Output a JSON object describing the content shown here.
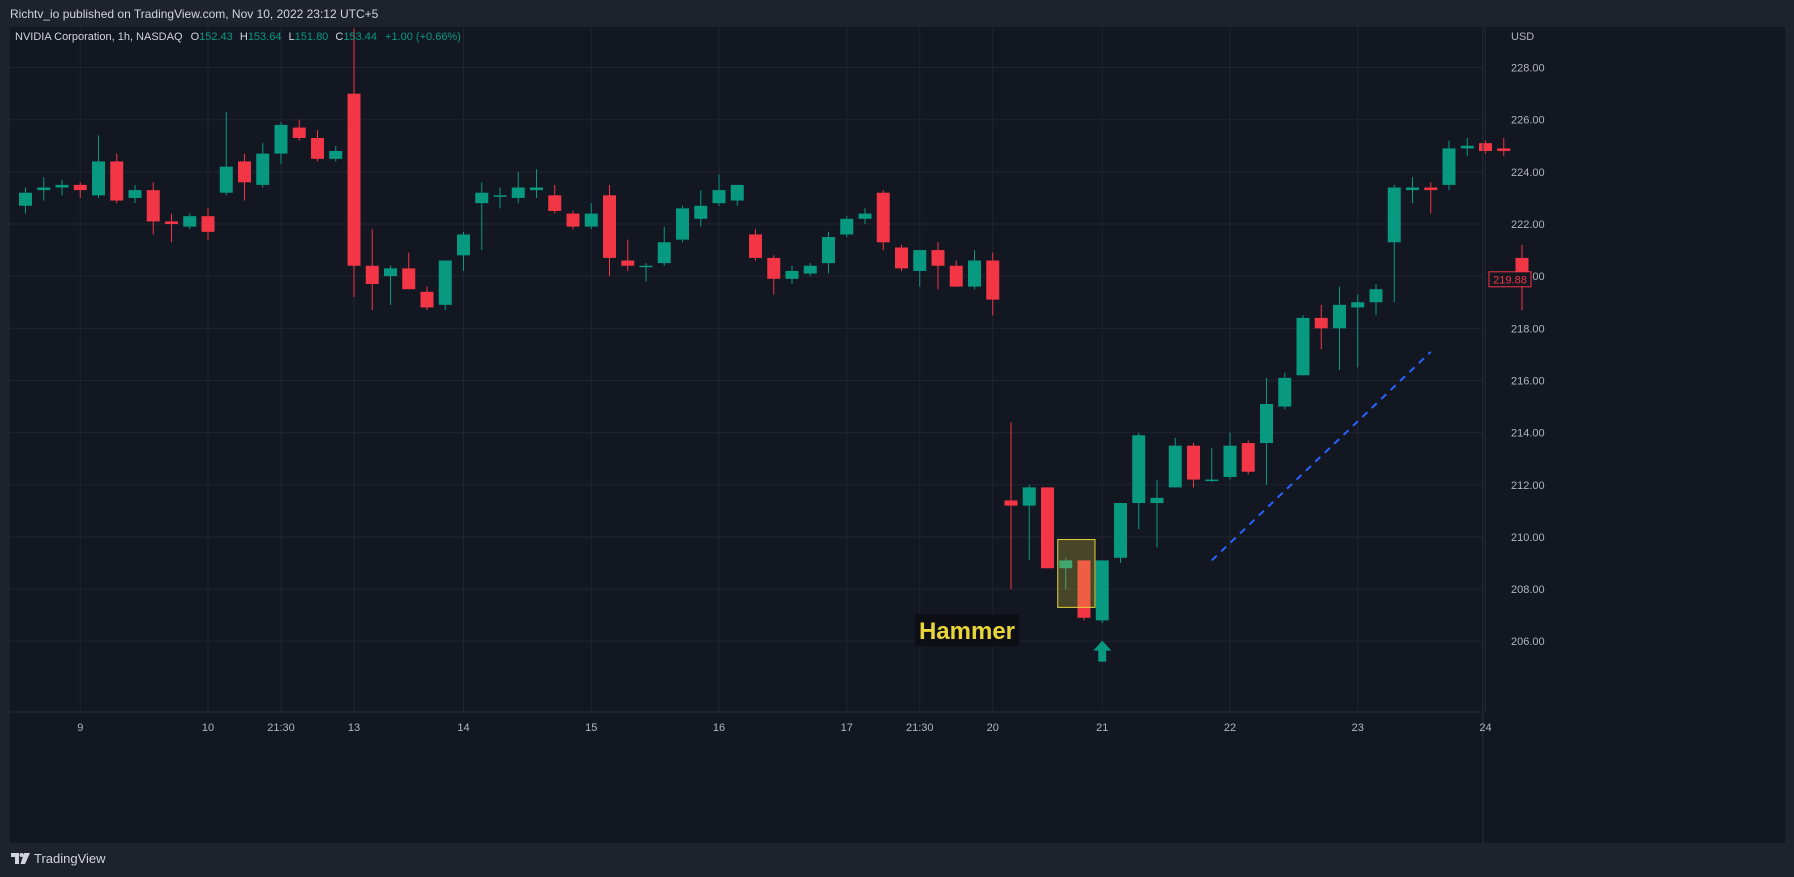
{
  "header": {
    "published": "Richtv_io published on TradingView.com, Nov 10, 2022 23:12 UTC+5"
  },
  "footer": {
    "brand": "TradingView"
  },
  "colors": {
    "up": "#089981",
    "down": "#f23645",
    "background": "#131722",
    "grid": "#1f2430",
    "text": "#b2b5be",
    "annotation": "#e8d53a",
    "trendline": "#2962ff"
  },
  "chart_data": {
    "type": "candlestick",
    "symbol": "NVIDIA Corporation",
    "interval": "1h",
    "exchange": "NASDAQ",
    "currency": "USD",
    "legend": {
      "symbol_text": "NVIDIA Corporation, 1h, NASDAQ",
      "o_label": "O",
      "o_value": "152.43",
      "h_label": "H",
      "h_value": "153.64",
      "l_label": "L",
      "l_value": "151.80",
      "c_label": "C",
      "c_value": "153.44",
      "change": "+1.00 (+0.66%)"
    },
    "last_price": "219.88",
    "ylim": [
      204,
      230
    ],
    "y_ticks": [
      "206.00",
      "208.00",
      "210.00",
      "212.00",
      "214.00",
      "216.00",
      "218.00",
      "220.00",
      "222.00",
      "224.00",
      "226.00",
      "228.00"
    ],
    "x_ticks": [
      {
        "index": 3,
        "label": "9"
      },
      {
        "index": 10,
        "label": "10"
      },
      {
        "index": 14,
        "label": "21:30"
      },
      {
        "index": 18,
        "label": "13"
      },
      {
        "index": 24,
        "label": "14"
      },
      {
        "index": 31,
        "label": "15"
      },
      {
        "index": 38,
        "label": "16"
      },
      {
        "index": 45,
        "label": "17"
      },
      {
        "index": 49,
        "label": "21:30"
      },
      {
        "index": 53,
        "label": "20"
      },
      {
        "index": 59,
        "label": "21"
      },
      {
        "index": 66,
        "label": "22"
      },
      {
        "index": 73,
        "label": "23"
      },
      {
        "index": 80,
        "label": "24"
      }
    ],
    "candles": [
      {
        "o": 222.7,
        "h": 223.4,
        "l": 222.4,
        "c": 223.2
      },
      {
        "o": 223.3,
        "h": 223.8,
        "l": 222.9,
        "c": 223.4
      },
      {
        "o": 223.4,
        "h": 223.7,
        "l": 223.1,
        "c": 223.5
      },
      {
        "o": 223.5,
        "h": 223.6,
        "l": 223.0,
        "c": 223.3
      },
      {
        "o": 223.1,
        "h": 225.4,
        "l": 223.0,
        "c": 224.4
      },
      {
        "o": 224.4,
        "h": 224.7,
        "l": 222.8,
        "c": 222.9
      },
      {
        "o": 223.0,
        "h": 223.5,
        "l": 222.8,
        "c": 223.3
      },
      {
        "o": 223.3,
        "h": 223.6,
        "l": 221.6,
        "c": 222.1
      },
      {
        "o": 222.1,
        "h": 222.4,
        "l": 221.3,
        "c": 222.0
      },
      {
        "o": 221.9,
        "h": 222.4,
        "l": 221.8,
        "c": 222.3
      },
      {
        "o": 222.3,
        "h": 222.6,
        "l": 221.4,
        "c": 221.7
      },
      {
        "o": 223.2,
        "h": 226.3,
        "l": 223.1,
        "c": 224.2
      },
      {
        "o": 224.4,
        "h": 224.7,
        "l": 222.9,
        "c": 223.6
      },
      {
        "o": 223.5,
        "h": 225.1,
        "l": 223.4,
        "c": 224.7
      },
      {
        "o": 224.7,
        "h": 225.9,
        "l": 224.3,
        "c": 225.8
      },
      {
        "o": 225.7,
        "h": 226.0,
        "l": 225.2,
        "c": 225.3
      },
      {
        "o": 225.3,
        "h": 225.6,
        "l": 224.4,
        "c": 224.5
      },
      {
        "o": 224.5,
        "h": 225.0,
        "l": 224.4,
        "c": 224.8
      },
      {
        "o": 227.0,
        "h": 229.5,
        "l": 219.2,
        "c": 220.4
      },
      {
        "o": 220.4,
        "h": 221.8,
        "l": 218.7,
        "c": 219.7
      },
      {
        "o": 220.0,
        "h": 220.4,
        "l": 218.9,
        "c": 220.3
      },
      {
        "o": 220.3,
        "h": 220.9,
        "l": 219.5,
        "c": 219.5
      },
      {
        "o": 219.4,
        "h": 219.6,
        "l": 218.7,
        "c": 218.8
      },
      {
        "o": 218.9,
        "h": 220.6,
        "l": 218.7,
        "c": 220.6
      },
      {
        "o": 220.8,
        "h": 221.7,
        "l": 220.2,
        "c": 221.6
      },
      {
        "o": 222.8,
        "h": 223.6,
        "l": 221.0,
        "c": 223.2
      },
      {
        "o": 223.1,
        "h": 223.4,
        "l": 222.6,
        "c": 223.1
      },
      {
        "o": 223.0,
        "h": 224.0,
        "l": 222.8,
        "c": 223.4
      },
      {
        "o": 223.3,
        "h": 224.1,
        "l": 223.0,
        "c": 223.4
      },
      {
        "o": 223.1,
        "h": 223.5,
        "l": 222.4,
        "c": 222.5
      },
      {
        "o": 222.4,
        "h": 222.5,
        "l": 221.8,
        "c": 221.9
      },
      {
        "o": 221.9,
        "h": 222.8,
        "l": 221.8,
        "c": 222.4
      },
      {
        "o": 223.1,
        "h": 223.5,
        "l": 220.0,
        "c": 220.7
      },
      {
        "o": 220.6,
        "h": 221.4,
        "l": 220.2,
        "c": 220.4
      },
      {
        "o": 220.4,
        "h": 220.5,
        "l": 219.8,
        "c": 220.4
      },
      {
        "o": 220.5,
        "h": 221.9,
        "l": 220.4,
        "c": 221.3
      },
      {
        "o": 221.4,
        "h": 222.7,
        "l": 221.3,
        "c": 222.6
      },
      {
        "o": 222.2,
        "h": 223.3,
        "l": 221.9,
        "c": 222.7
      },
      {
        "o": 222.8,
        "h": 223.9,
        "l": 222.7,
        "c": 223.3
      },
      {
        "o": 222.9,
        "h": 223.5,
        "l": 222.7,
        "c": 223.5
      },
      {
        "o": 221.6,
        "h": 221.8,
        "l": 220.6,
        "c": 220.7
      },
      {
        "o": 220.7,
        "h": 220.8,
        "l": 219.3,
        "c": 219.9
      },
      {
        "o": 219.9,
        "h": 220.4,
        "l": 219.7,
        "c": 220.2
      },
      {
        "o": 220.1,
        "h": 220.5,
        "l": 220.0,
        "c": 220.4
      },
      {
        "o": 220.5,
        "h": 221.7,
        "l": 220.1,
        "c": 221.5
      },
      {
        "o": 221.6,
        "h": 222.3,
        "l": 221.5,
        "c": 222.2
      },
      {
        "o": 222.2,
        "h": 222.6,
        "l": 222.0,
        "c": 222.4
      },
      {
        "o": 223.2,
        "h": 223.3,
        "l": 221.0,
        "c": 221.3
      },
      {
        "o": 221.1,
        "h": 221.2,
        "l": 220.2,
        "c": 220.3
      },
      {
        "o": 220.2,
        "h": 221.0,
        "l": 219.6,
        "c": 221.0
      },
      {
        "o": 221.0,
        "h": 221.3,
        "l": 219.5,
        "c": 220.4
      },
      {
        "o": 220.4,
        "h": 220.6,
        "l": 219.6,
        "c": 219.6
      },
      {
        "o": 219.6,
        "h": 221.0,
        "l": 219.5,
        "c": 220.6
      },
      {
        "o": 220.6,
        "h": 220.9,
        "l": 218.5,
        "c": 219.1
      },
      {
        "o": 211.4,
        "h": 214.4,
        "l": 208.0,
        "c": 211.2
      },
      {
        "o": 211.2,
        "h": 212.0,
        "l": 209.1,
        "c": 211.9
      },
      {
        "o": 211.9,
        "h": 211.9,
        "l": 208.8,
        "c": 208.8
      },
      {
        "o": 208.8,
        "h": 209.2,
        "l": 208.0,
        "c": 209.1
      },
      {
        "o": 209.1,
        "h": 209.1,
        "l": 206.8,
        "c": 206.9
      },
      {
        "o": 206.8,
        "h": 209.1,
        "l": 206.7,
        "c": 209.1
      },
      {
        "o": 209.2,
        "h": 211.3,
        "l": 209.0,
        "c": 211.3
      },
      {
        "o": 211.3,
        "h": 214.0,
        "l": 210.3,
        "c": 213.9
      },
      {
        "o": 211.3,
        "h": 212.2,
        "l": 209.6,
        "c": 211.5
      },
      {
        "o": 211.9,
        "h": 213.8,
        "l": 211.9,
        "c": 213.5
      },
      {
        "o": 213.5,
        "h": 213.6,
        "l": 211.9,
        "c": 212.2
      },
      {
        "o": 212.2,
        "h": 213.4,
        "l": 212.1,
        "c": 212.2
      },
      {
        "o": 212.3,
        "h": 214.0,
        "l": 212.2,
        "c": 213.5
      },
      {
        "o": 213.6,
        "h": 213.7,
        "l": 212.4,
        "c": 212.5
      },
      {
        "o": 213.6,
        "h": 216.1,
        "l": 212.0,
        "c": 215.1
      },
      {
        "o": 215.0,
        "h": 216.3,
        "l": 214.9,
        "c": 216.1
      },
      {
        "o": 216.2,
        "h": 218.5,
        "l": 216.2,
        "c": 218.4
      },
      {
        "o": 218.4,
        "h": 218.9,
        "l": 217.2,
        "c": 218.0
      },
      {
        "o": 218.0,
        "h": 219.6,
        "l": 216.4,
        "c": 218.9
      },
      {
        "o": 218.8,
        "h": 219.3,
        "l": 216.5,
        "c": 219.0
      },
      {
        "o": 219.0,
        "h": 219.7,
        "l": 218.5,
        "c": 219.5
      },
      {
        "o": 221.3,
        "h": 223.5,
        "l": 219.0,
        "c": 223.4
      },
      {
        "o": 223.3,
        "h": 223.8,
        "l": 222.8,
        "c": 223.4
      },
      {
        "o": 223.4,
        "h": 223.6,
        "l": 222.4,
        "c": 223.3
      },
      {
        "o": 223.5,
        "h": 225.2,
        "l": 223.3,
        "c": 224.9
      },
      {
        "o": 224.9,
        "h": 225.3,
        "l": 224.6,
        "c": 225.0
      },
      {
        "o": 225.1,
        "h": 225.2,
        "l": 224.7,
        "c": 224.8
      },
      {
        "o": 224.9,
        "h": 225.3,
        "l": 224.6,
        "c": 224.8
      },
      {
        "o": 220.7,
        "h": 221.2,
        "l": 218.7,
        "c": 219.9
      }
    ],
    "annotations": {
      "hammer_label": "Hammer",
      "hammer_box": {
        "start_index": 57,
        "end_index": 58,
        "top": 209.9,
        "bottom": 207.3
      },
      "arrow_index": 59,
      "arrow_price": 205.6,
      "trendline": {
        "start_index": 65,
        "start_price": 209.1,
        "end_index": 77,
        "end_price": 217.1
      }
    }
  }
}
